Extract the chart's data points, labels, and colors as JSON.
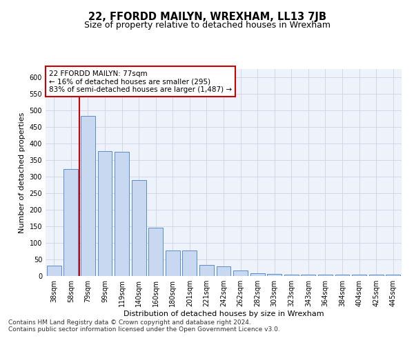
{
  "title": "22, FFORDD MAILYN, WREXHAM, LL13 7JB",
  "subtitle": "Size of property relative to detached houses in Wrexham",
  "xlabel": "Distribution of detached houses by size in Wrexham",
  "ylabel": "Number of detached properties",
  "categories": [
    "38sqm",
    "58sqm",
    "79sqm",
    "99sqm",
    "119sqm",
    "140sqm",
    "160sqm",
    "180sqm",
    "201sqm",
    "221sqm",
    "242sqm",
    "262sqm",
    "282sqm",
    "303sqm",
    "323sqm",
    "343sqm",
    "364sqm",
    "384sqm",
    "404sqm",
    "425sqm",
    "445sqm"
  ],
  "values": [
    32,
    323,
    484,
    377,
    375,
    290,
    145,
    77,
    77,
    33,
    30,
    17,
    9,
    7,
    5,
    5,
    5,
    5,
    5,
    5,
    5
  ],
  "bar_color": "#c8d8f0",
  "bar_edge_color": "#5b8cc8",
  "bar_edge_width": 0.7,
  "red_line_x": 1.5,
  "red_line_color": "#cc0000",
  "annotation_text": "22 FFORDD MAILYN: 77sqm\n← 16% of detached houses are smaller (295)\n83% of semi-detached houses are larger (1,487) →",
  "annotation_box_color": "#ffffff",
  "annotation_box_edge_color": "#cc0000",
  "ylim": [
    0,
    625
  ],
  "yticks": [
    0,
    50,
    100,
    150,
    200,
    250,
    300,
    350,
    400,
    450,
    500,
    550,
    600
  ],
  "footer1": "Contains HM Land Registry data © Crown copyright and database right 2024.",
  "footer2": "Contains public sector information licensed under the Open Government Licence v3.0.",
  "bg_color": "#eef2fa",
  "grid_color": "#c5cde0",
  "title_fontsize": 10.5,
  "subtitle_fontsize": 9,
  "axis_label_fontsize": 8,
  "tick_fontsize": 7,
  "annot_fontsize": 7.5,
  "footer_fontsize": 6.5
}
